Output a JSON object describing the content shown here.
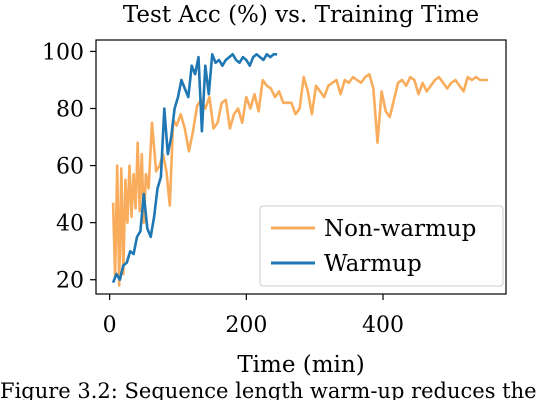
{
  "chart_data": {
    "type": "line",
    "title": "Test Acc (%) vs. Training Time",
    "xlabel": "Time (min)",
    "ylabel": "",
    "xlim": [
      -20,
      580
    ],
    "ylim": [
      15,
      104
    ],
    "xticks": [
      0,
      200,
      400
    ],
    "yticks": [
      20,
      40,
      60,
      80,
      100
    ],
    "grid": false,
    "legend_position": "bottom-right",
    "series": [
      {
        "name": "Non-warmup",
        "color": "#f9ad5c",
        "x": [
          5,
          8,
          11,
          14,
          17,
          20,
          23,
          26,
          29,
          32,
          35,
          38,
          41,
          44,
          47,
          50,
          53,
          57,
          62,
          68,
          73,
          78,
          83,
          88,
          93,
          98,
          104,
          110,
          116,
          122,
          128,
          134,
          140,
          146,
          152,
          158,
          164,
          170,
          176,
          182,
          188,
          194,
          200,
          206,
          212,
          218,
          224,
          230,
          236,
          242,
          248,
          254,
          260,
          266,
          272,
          278,
          284,
          290,
          296,
          302,
          308,
          314,
          320,
          326,
          332,
          338,
          344,
          350,
          356,
          362,
          368,
          374,
          380,
          386,
          392,
          398,
          404,
          410,
          416,
          422,
          428,
          434,
          440,
          446,
          452,
          458,
          464,
          470,
          476,
          482,
          488,
          494,
          500,
          506,
          512,
          518,
          524,
          530,
          536,
          542,
          548,
          554
        ],
        "y": [
          47,
          21,
          60,
          18,
          59,
          22,
          55,
          40,
          60,
          42,
          57,
          45,
          68,
          44,
          64,
          40,
          57,
          52,
          75,
          58,
          60,
          64,
          58,
          46,
          76,
          74,
          78,
          73,
          65,
          72,
          81,
          83,
          80,
          84,
          73,
          75,
          82,
          83,
          73,
          78,
          80,
          75,
          84,
          80,
          85,
          79,
          90,
          88,
          87,
          84,
          86,
          82,
          82,
          82,
          78,
          80,
          91,
          86,
          78,
          88,
          86,
          84,
          88,
          89,
          90,
          85,
          90,
          89,
          91,
          90,
          89,
          91,
          92,
          87,
          68,
          86,
          79,
          77,
          83,
          89,
          90,
          88,
          91,
          90,
          85,
          89,
          86,
          88,
          90,
          91,
          89,
          87,
          89,
          90,
          88,
          86,
          91,
          90,
          91,
          90,
          90,
          90
        ]
      },
      {
        "name": "Warmup",
        "color": "#1f77b4",
        "x": [
          5,
          10,
          15,
          20,
          25,
          30,
          35,
          40,
          45,
          50,
          55,
          60,
          65,
          70,
          75,
          80,
          85,
          90,
          95,
          100,
          105,
          110,
          115,
          120,
          125,
          130,
          135,
          140,
          145,
          150,
          155,
          160,
          165,
          170,
          175,
          180,
          185,
          190,
          195,
          200,
          205,
          210,
          215,
          220,
          225,
          230,
          235,
          240,
          245
        ],
        "y": [
          19,
          22,
          20,
          25,
          26,
          30,
          29,
          35,
          37,
          50,
          38,
          35,
          42,
          52,
          56,
          80,
          64,
          70,
          80,
          84,
          90,
          87,
          84,
          95,
          92,
          98,
          72,
          95,
          85,
          99,
          96,
          97,
          95,
          97,
          98,
          99,
          97,
          96,
          98,
          97,
          95,
          98,
          99,
          98,
          97,
          99,
          98,
          99,
          99
        ]
      }
    ]
  },
  "caption": "Figure 3.2: Sequence length warm-up reduces the"
}
